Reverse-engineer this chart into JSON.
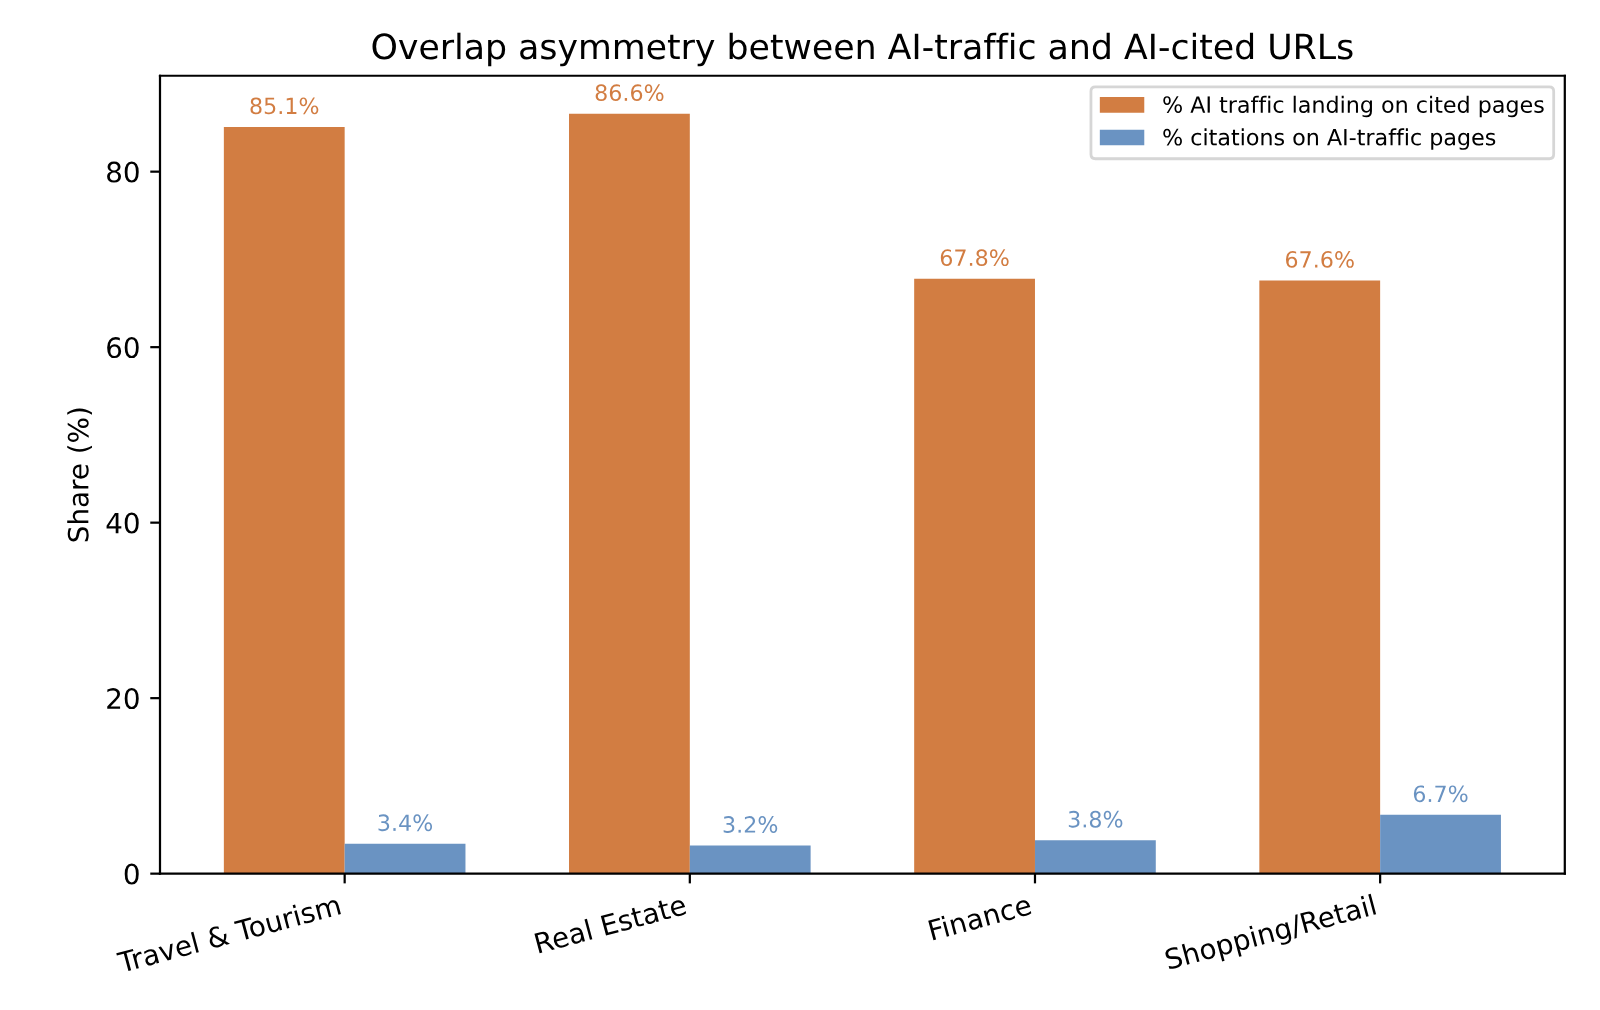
{
  "chart_data": {
    "type": "bar",
    "title": "Overlap asymmetry between AI-traffic and AI-cited URLs",
    "ylabel": "Share (%)",
    "categories": [
      "Travel & Tourism",
      "Real Estate",
      "Finance",
      "Shopping/Retail"
    ],
    "series": [
      {
        "name": "% AI traffic landing on cited pages",
        "color": "#d27d42",
        "values": [
          85.1,
          86.6,
          67.8,
          67.6
        ],
        "value_labels": [
          "85.1%",
          "86.6%",
          "67.8%",
          "67.6%"
        ]
      },
      {
        "name": "% citations on AI-traffic pages",
        "color": "#6a93c2",
        "values": [
          3.4,
          3.2,
          3.8,
          6.7
        ],
        "value_labels": [
          "3.4%",
          "3.2%",
          "3.8%",
          "6.7%"
        ]
      }
    ],
    "ylim": [
      0,
      90.93
    ],
    "yticks": [
      0,
      20,
      40,
      60,
      80
    ],
    "grid": false,
    "legend": "top right"
  }
}
